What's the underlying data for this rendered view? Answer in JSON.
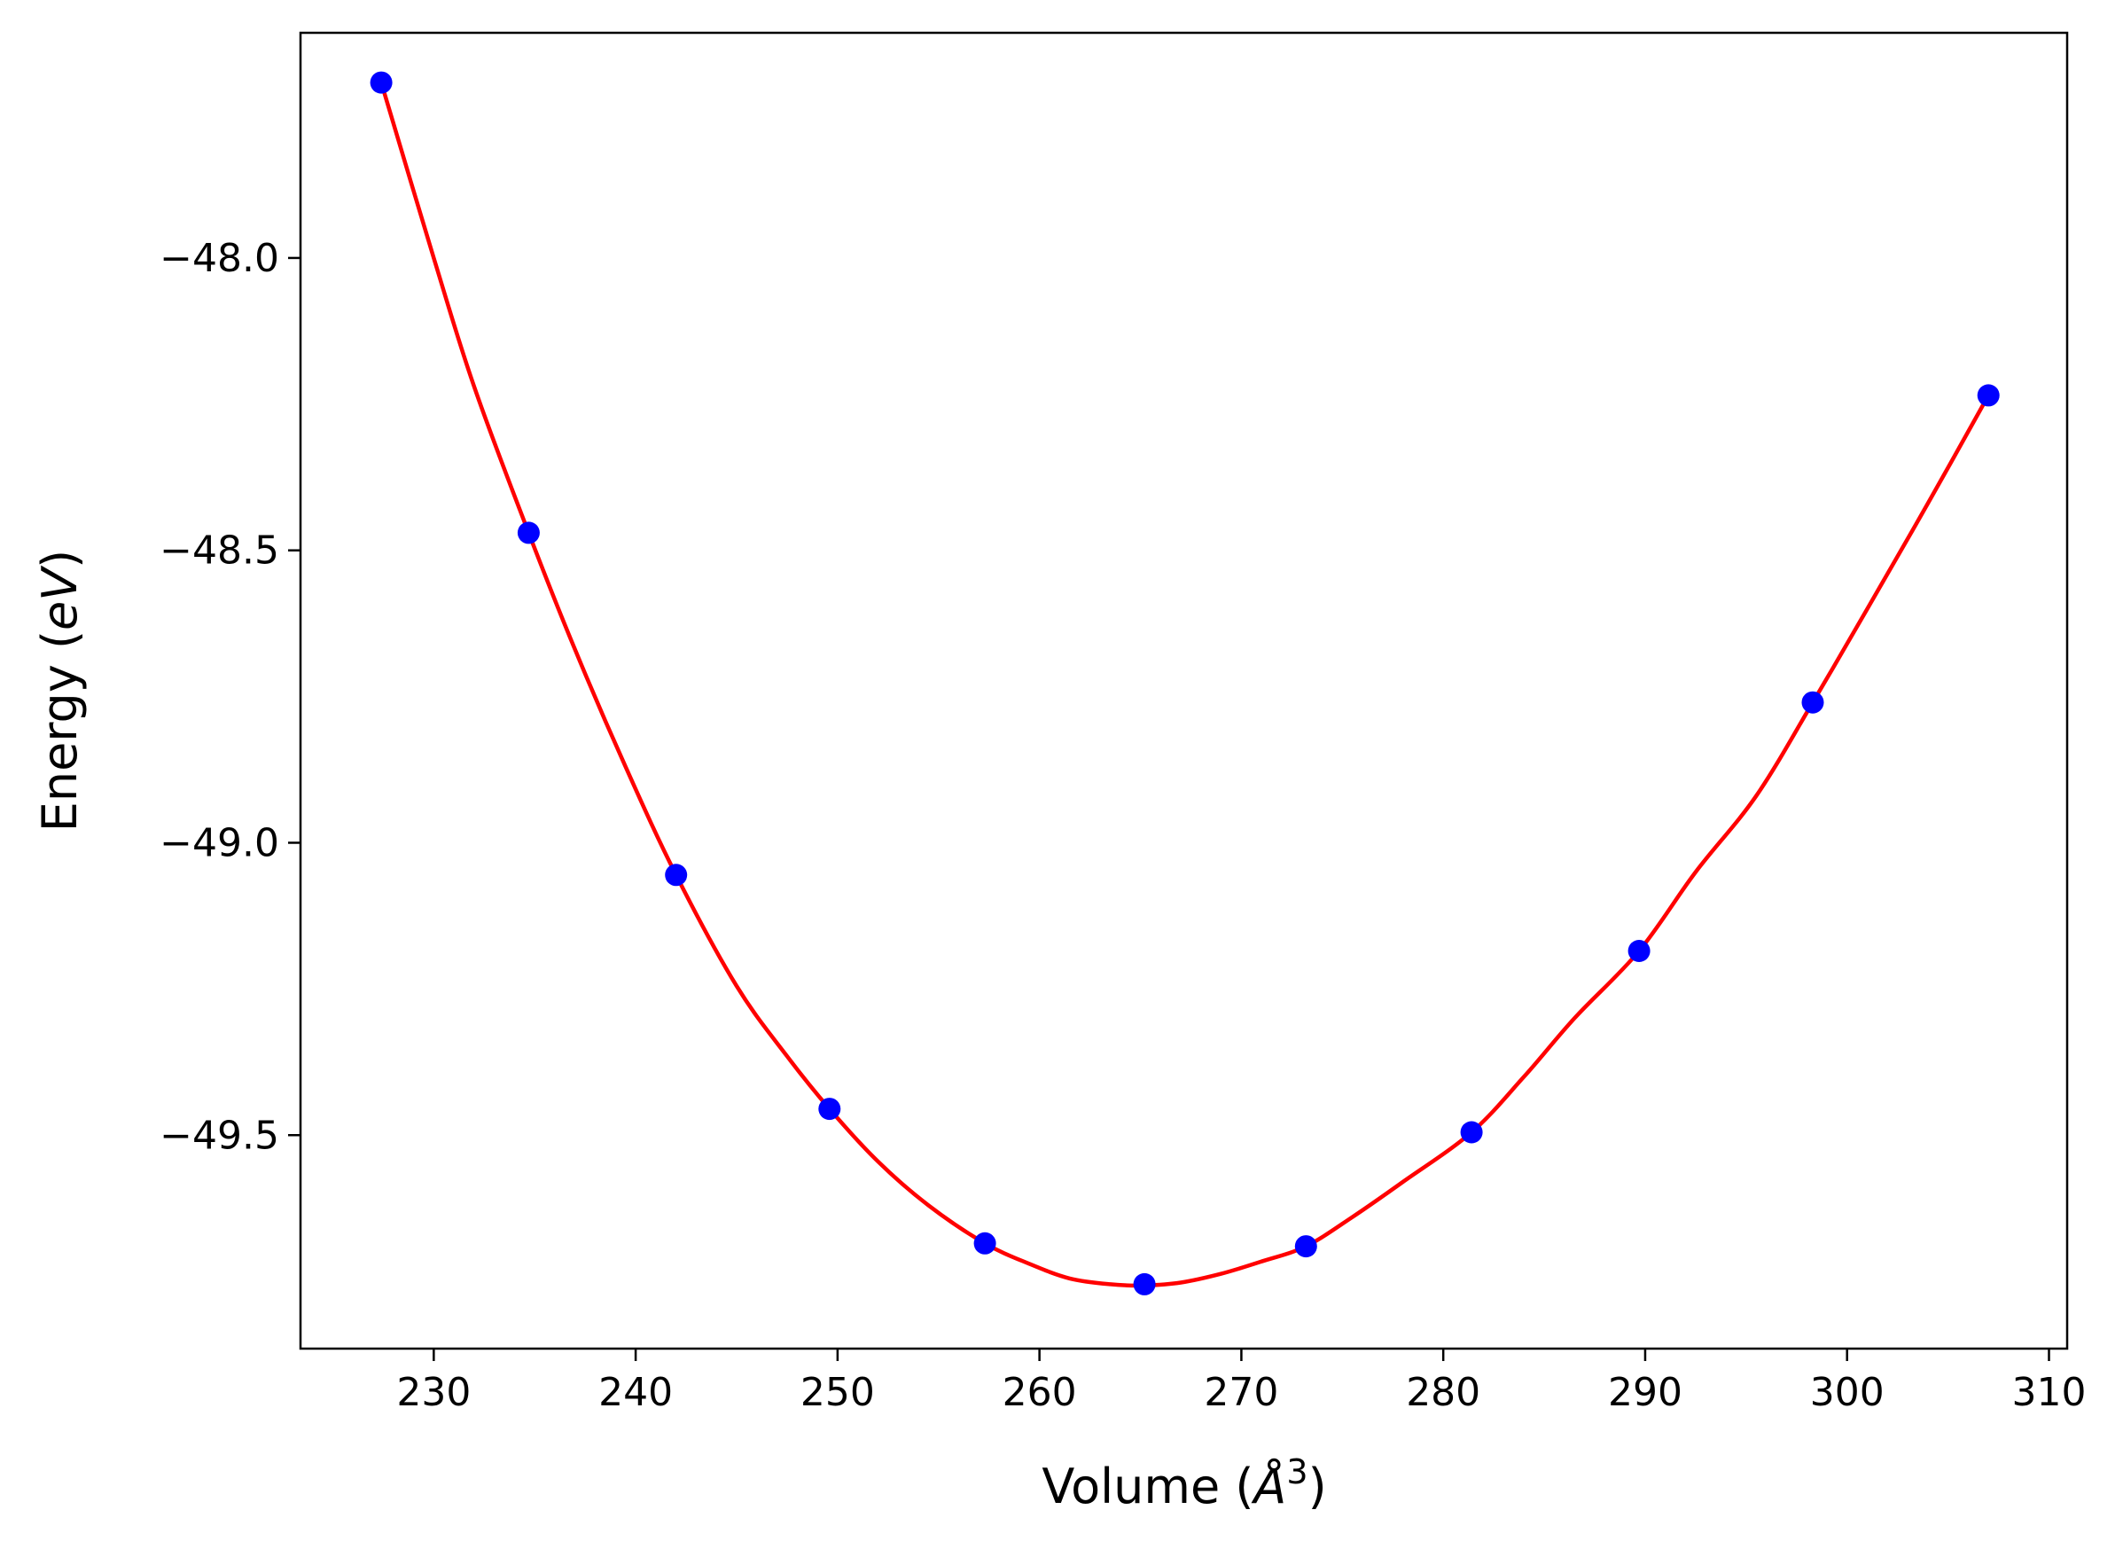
{
  "chart_data": {
    "type": "scatter",
    "title": "",
    "xlabel": "Volume (",
    "xlabel_unit": "Å",
    "xlabel_exponent": "3",
    "xlabel_close": ")",
    "ylabel": "Energy (",
    "ylabel_unit": "eV",
    "ylabel_close": ")",
    "xlim": [
      223.4,
      310.9
    ],
    "ylim": [
      -49.865,
      -47.615
    ],
    "x_ticks": [
      230,
      240,
      250,
      260,
      270,
      280,
      290,
      300,
      310
    ],
    "x_tick_labels": [
      "230",
      "240",
      "250",
      "260",
      "270",
      "280",
      "290",
      "300",
      "310"
    ],
    "y_ticks": [
      -48.0,
      -48.5,
      -49.0,
      -49.5
    ],
    "y_tick_labels": [
      "−48.0",
      "−48.5",
      "−49.0",
      "−49.5"
    ],
    "grid": false,
    "series": [
      {
        "kind": "points",
        "color": "#0000ff",
        "x": [
          227.4,
          234.7,
          242.0,
          249.6,
          257.3,
          265.2,
          273.2,
          281.4,
          289.7,
          298.3,
          307.0
        ],
        "y": [
          -47.7,
          -48.47,
          -49.055,
          -49.455,
          -49.685,
          -49.755,
          -49.69,
          -49.495,
          -49.185,
          -48.76,
          -48.235
        ]
      },
      {
        "kind": "fit-curve",
        "color": "#ff0000",
        "x": [
          227.4,
          230.0,
          232.0,
          234.7,
          237.0,
          239.5,
          242.0,
          245.0,
          247.5,
          249.6,
          252.0,
          254.5,
          257.3,
          259.5,
          261.5,
          263.5,
          265.2,
          267.0,
          269.0,
          271.0,
          273.2,
          275.5,
          278.0,
          281.4,
          284.0,
          286.5,
          289.7,
          292.5,
          295.5,
          298.3,
          301.0,
          304.0,
          307.0
        ],
        "y": [
          -47.7,
          -48.0,
          -48.22,
          -48.47,
          -48.67,
          -48.87,
          -49.055,
          -49.245,
          -49.365,
          -49.455,
          -49.545,
          -49.62,
          -49.685,
          -49.72,
          -49.745,
          -49.755,
          -49.757,
          -49.752,
          -49.737,
          -49.716,
          -49.69,
          -49.64,
          -49.58,
          -49.495,
          -49.4,
          -49.3,
          -49.185,
          -49.05,
          -48.92,
          -48.76,
          -48.6,
          -48.42,
          -48.235
        ]
      }
    ]
  }
}
